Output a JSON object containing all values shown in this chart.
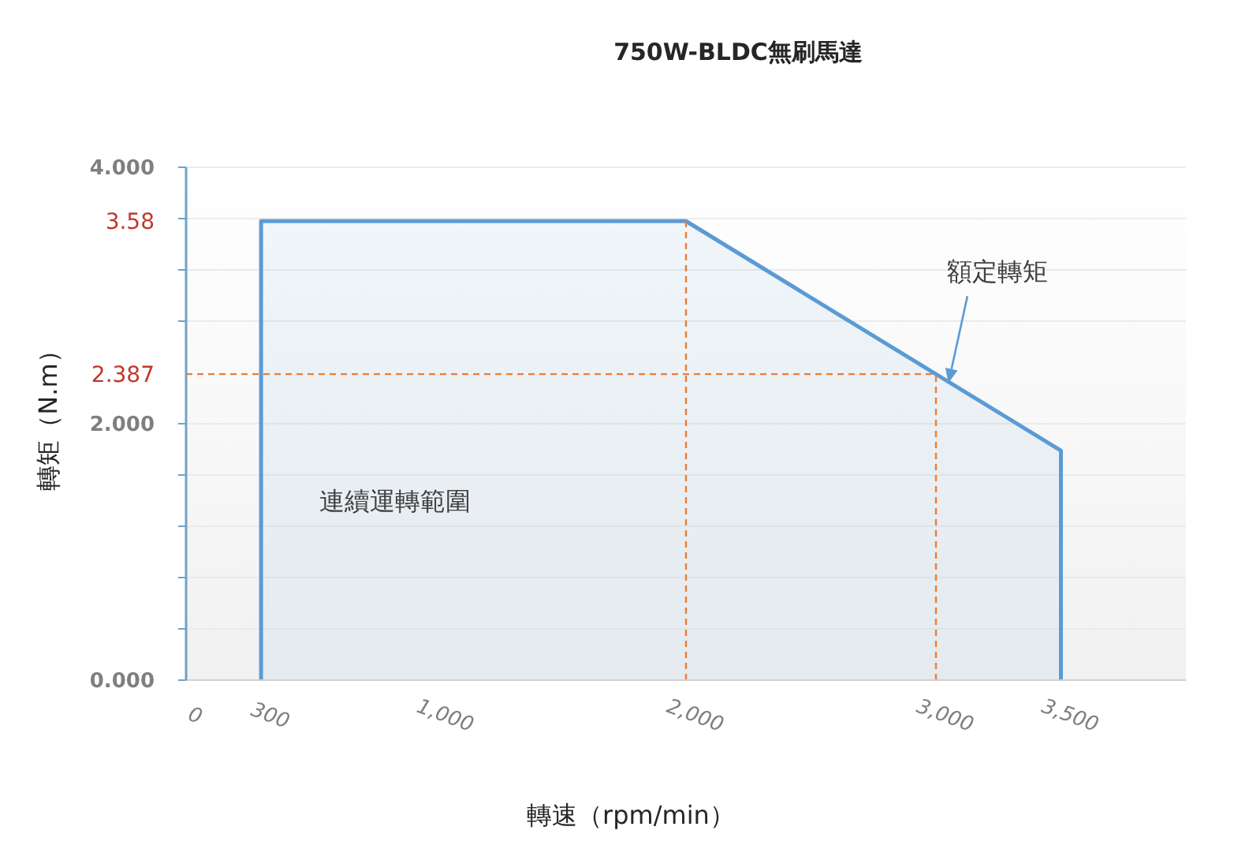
{
  "chart_data": {
    "type": "area",
    "title": "750W-BLDC無刷馬達",
    "xlabel": "轉速（rpm/min）",
    "ylabel": "轉矩（N.m）",
    "x": [
      300,
      2000,
      3500
    ],
    "values": [
      3.58,
      3.58,
      1.79
    ],
    "color": "#5b9bd5",
    "xlim": [
      0,
      4000
    ],
    "xticks": [
      0,
      300,
      {
        "value": 1000,
        "label": "1,000"
      },
      {
        "value": 2000,
        "label": "2,000"
      },
      {
        "value": 3000,
        "label": "3,000"
      },
      {
        "value": 3500,
        "label": "3,500"
      }
    ],
    "ylim": [
      0,
      4
    ],
    "yticks": [
      {
        "value": 0,
        "label": "0.000"
      },
      {
        "value": 0.4,
        "label": null
      },
      {
        "value": 0.8,
        "label": null
      },
      {
        "value": 1.2,
        "label": null
      },
      {
        "value": 1.6,
        "label": null
      },
      {
        "value": 2,
        "label": "2.000"
      },
      {
        "value": 2.8,
        "label": null
      },
      {
        "value": 3.2,
        "label": null
      },
      {
        "value": 3.58,
        "label": "3.58"
      },
      {
        "value": 3.6,
        "label": null
      },
      {
        "value": 4,
        "label": "4.000"
      }
    ],
    "grid": "y",
    "ref_lines": [
      {
        "axis": "y",
        "value": 2.387,
        "label": "2.387",
        "color": "#ed7d31",
        "line_style": "dashed"
      },
      {
        "axis": "x",
        "value": 2000,
        "color": "#ed7d31",
        "line_style": "dashed"
      },
      {
        "axis": "x",
        "value": 3000,
        "color": "#ed7d31",
        "line_style": "dashed"
      }
    ],
    "annotations": [
      {
        "text": "額定轉矩",
        "x": 3050,
        "y": 2.33
      },
      "連續運轉範圍"
    ]
  }
}
